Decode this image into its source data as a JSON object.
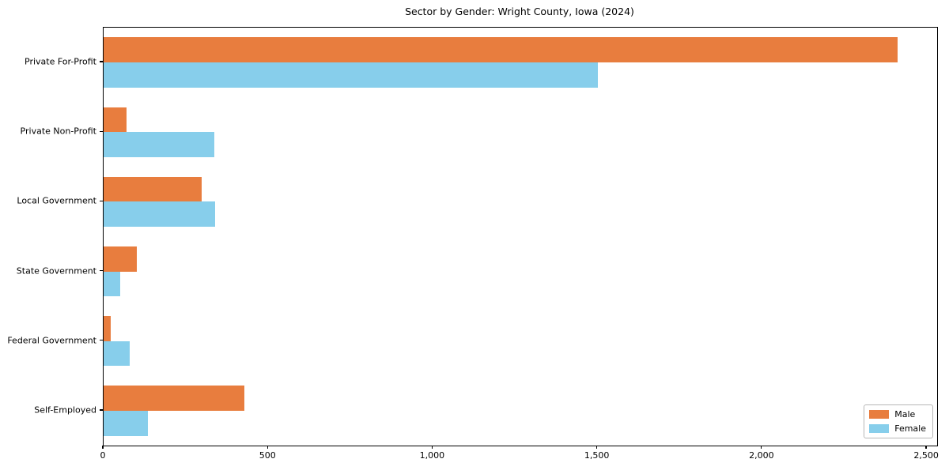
{
  "figure": {
    "background_color": "#ffffff",
    "spine_color": "#000000"
  },
  "chart_data": {
    "type": "bar",
    "orientation": "horizontal",
    "title": "Sector by Gender: Wright County, Iowa (2024)",
    "xlabel": "",
    "ylabel": "",
    "categories": [
      "Private For-Profit",
      "Private Non-Profit",
      "Local Government",
      "State Government",
      "Federal Government",
      "Self-Employed"
    ],
    "series": [
      {
        "name": "Male",
        "color": "#e87d3e",
        "values": [
          2410,
          70,
          298,
          102,
          21,
          428
        ]
      },
      {
        "name": "Female",
        "color": "#87ceeb",
        "values": [
          1500,
          336,
          338,
          50,
          80,
          134
        ]
      }
    ],
    "xlim": [
      0,
      2531
    ],
    "x_ticks": [
      {
        "value": 0,
        "label": "0"
      },
      {
        "value": 500,
        "label": "500"
      },
      {
        "value": 1000,
        "label": "1,000"
      },
      {
        "value": 1500,
        "label": "1,500"
      },
      {
        "value": 2000,
        "label": "2,000"
      },
      {
        "value": 2500,
        "label": "2,500"
      }
    ],
    "grid": false,
    "legend_position": "lower right",
    "bar_fraction": 0.36
  }
}
